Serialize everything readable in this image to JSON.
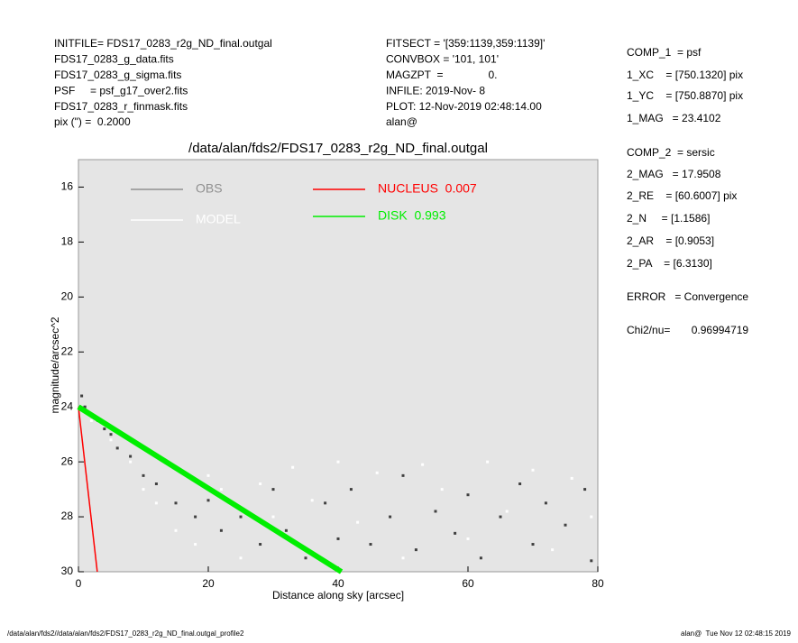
{
  "header": {
    "left": [
      "INITFILE= FDS17_0283_r2g_ND_final.outgal",
      "FDS17_0283_g_data.fits",
      "FDS17_0283_g_sigma.fits",
      "PSF     = psf_g17_over2.fits",
      "FDS17_0283_r_finmask.fits",
      "pix (\") =  0.2000"
    ],
    "middle": [
      "FITSECT = '[359:1139,359:1139]'",
      "CONVBOX = '101, 101'",
      "MAGZPT  =               0.",
      "INFILE: 2019-Nov- 8",
      "PLOT: 12-Nov-2019 02:48:14.00",
      "alan@"
    ],
    "right": [
      "COMP_1  = psf",
      "1_XC    = [750.1320] pix",
      "1_YC    = [750.8870] pix",
      "1_MAG   = 23.4102",
      "COMP_2  = sersic",
      "2_MAG   = 17.9508",
      "2_RE    = [60.6007] pix",
      "2_N     = [1.1586]",
      "2_AR    = [0.9053]",
      "2_PA    = [6.3130]",
      "ERROR   = Convergence",
      "Chi2/nu=       0.96994719"
    ]
  },
  "footer": {
    "left": "/data/alan/fds2//data/alan/fds2/FDS17_0283_r2g_ND_final.outgal_profile2",
    "right": "alan@  Tue Nov 12 02:48:15 2019"
  },
  "chart_data": {
    "type": "scatter",
    "title": "/data/alan/fds2/FDS17_0283_r2g_ND_final.outgal",
    "x_label": "Distance along sky [arcsec]",
    "y_label": "magnitude/arcsec^2",
    "xlim": [
      0,
      80
    ],
    "xticks": [
      0,
      20,
      40,
      60,
      80
    ],
    "ylim": [
      15,
      30
    ],
    "yticks": [
      16,
      18,
      20,
      22,
      24,
      26,
      28,
      30
    ],
    "y_inverted": true,
    "series": [
      {
        "name": "OBS",
        "color": "#404040",
        "legend_color": "#909090",
        "style": "points",
        "x": [
          0.5,
          1,
          2,
          3,
          4,
          5,
          6,
          8,
          10,
          12,
          15,
          18,
          20,
          22,
          25,
          28,
          30,
          32,
          35,
          38,
          40,
          42,
          45,
          48,
          50,
          52,
          55,
          58,
          60,
          62,
          65,
          68,
          70,
          72,
          75,
          78,
          79
        ],
        "values": [
          23.6,
          24,
          24.3,
          24.5,
          24.8,
          25,
          25.5,
          25.8,
          26.5,
          26.8,
          27.5,
          28,
          27.4,
          28.5,
          28,
          29,
          27,
          28.5,
          29.5,
          27.5,
          28.8,
          27,
          29,
          28,
          26.5,
          29.2,
          27.8,
          28.6,
          27.2,
          29.5,
          28,
          26.8,
          29,
          27.5,
          28.3,
          27,
          29.6
        ]
      },
      {
        "name": "MODEL",
        "color": "#ffffff",
        "style": "points",
        "x": [
          2,
          5,
          8,
          10,
          12,
          15,
          18,
          20,
          22,
          25,
          28,
          30,
          33,
          36,
          40,
          43,
          46,
          50,
          53,
          56,
          60,
          63,
          66,
          70,
          73,
          76,
          79
        ],
        "values": [
          24.5,
          25.2,
          26,
          27,
          27.5,
          28.5,
          29,
          26.5,
          27,
          29.5,
          26.8,
          28,
          26.2,
          27.4,
          26,
          28.2,
          26.4,
          29.5,
          26.1,
          27,
          28.8,
          26,
          27.8,
          26.3,
          29.2,
          26.6,
          28
        ]
      },
      {
        "name": "NUCLEUS  0.007",
        "color": "#ff0000",
        "style": "line",
        "x": [
          0,
          2.9
        ],
        "values": [
          24,
          30
        ]
      },
      {
        "name": "DISK  0.993",
        "color": "#00ee00",
        "style": "band",
        "x": [
          0,
          40.5
        ],
        "values": [
          24,
          30
        ]
      }
    ]
  }
}
